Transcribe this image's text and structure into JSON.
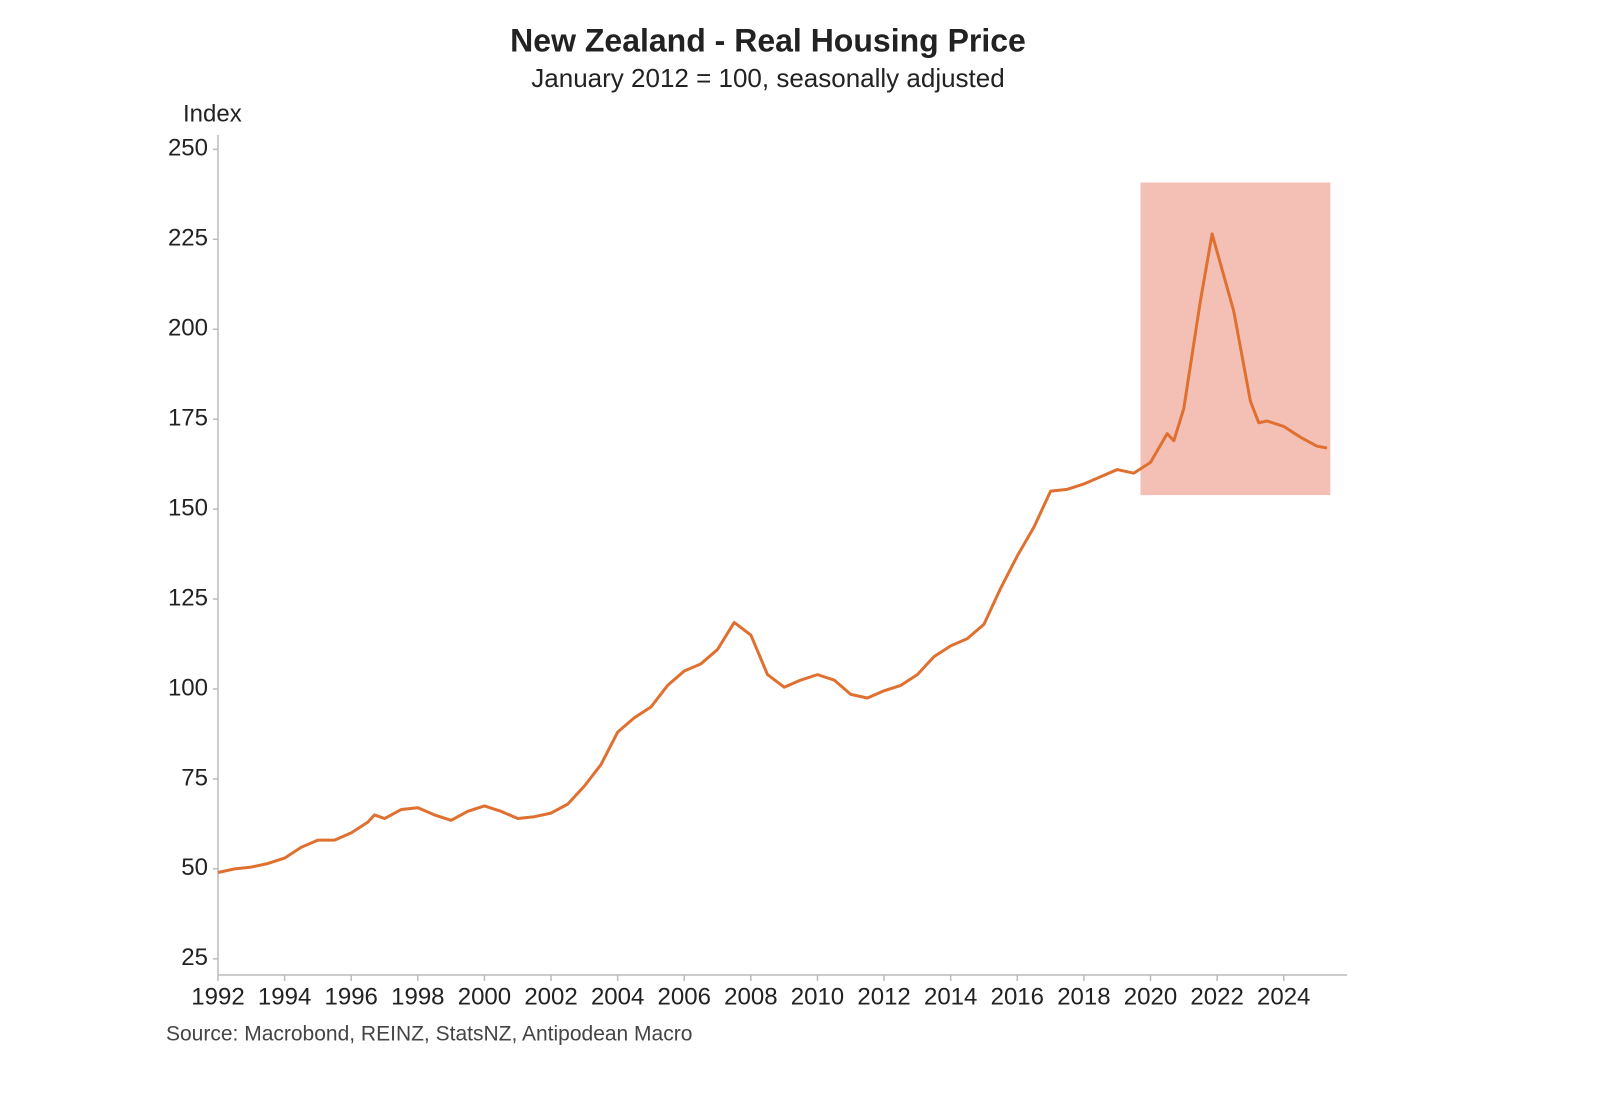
{
  "chart_data": {
    "type": "line",
    "title": "New Zealand - Real Housing Price",
    "subtitle": "January 2012 = 100, seasonally adjusted",
    "y_label": "Index",
    "source": "Source: Macrobond, REINZ, StatsNZ, Antipodean Macro",
    "xlim": [
      1992,
      2025.9
    ],
    "xticks": [
      1992,
      1994,
      1996,
      1998,
      2000,
      2002,
      2004,
      2006,
      2008,
      2010,
      2012,
      2014,
      2016,
      2018,
      2020,
      2022,
      2024
    ],
    "ylim": [
      20.5,
      254
    ],
    "yticks": [
      25,
      50,
      75,
      100,
      125,
      150,
      175,
      200,
      225,
      250
    ],
    "highlight": {
      "x": [
        2019.7,
        2025.4
      ],
      "y": [
        153.9,
        240.8
      ],
      "color": "#f4c0b6"
    },
    "series": [
      {
        "name": "Real Housing Price",
        "color": "#e07030",
        "x": [
          1992.0,
          1992.5,
          1993.0,
          1993.5,
          1994.0,
          1994.5,
          1995.0,
          1995.5,
          1996.0,
          1996.5,
          1996.7,
          1997.0,
          1997.5,
          1998.0,
          1998.5,
          1999.0,
          1999.5,
          2000.0,
          2000.5,
          2001.0,
          2001.5,
          2002.0,
          2002.5,
          2003.0,
          2003.5,
          2004.0,
          2004.5,
          2005.0,
          2005.5,
          2006.0,
          2006.5,
          2007.0,
          2007.5,
          2008.0,
          2008.5,
          2009.0,
          2009.5,
          2010.0,
          2010.5,
          2011.0,
          2011.5,
          2012.0,
          2012.5,
          2013.0,
          2013.5,
          2014.0,
          2014.5,
          2015.0,
          2015.5,
          2016.0,
          2016.5,
          2017.0,
          2017.5,
          2018.0,
          2018.5,
          2019.0,
          2019.5,
          2020.0,
          2020.5,
          2020.7,
          2021.0,
          2021.5,
          2021.85,
          2022.5,
          2023.0,
          2023.25,
          2023.5,
          2024.0,
          2024.5,
          2025.0,
          2025.3
        ],
        "values": [
          49,
          50,
          50.5,
          51.5,
          53,
          56,
          58,
          58,
          60,
          63,
          65,
          64,
          66.5,
          67,
          65,
          63.5,
          66,
          67.5,
          66,
          64,
          64.5,
          65.5,
          68,
          73,
          79,
          88,
          92,
          95,
          101,
          105,
          107,
          111,
          118.5,
          115,
          104,
          100.5,
          102.5,
          104,
          102.5,
          98.5,
          97.5,
          99.5,
          101,
          104,
          109,
          112,
          114,
          118,
          128,
          137,
          145,
          155,
          155.5,
          157,
          159,
          161,
          160,
          163,
          171,
          169,
          178,
          208,
          226.5,
          205,
          180,
          174,
          174.5,
          173,
          170,
          167.5,
          167
        ]
      }
    ]
  }
}
